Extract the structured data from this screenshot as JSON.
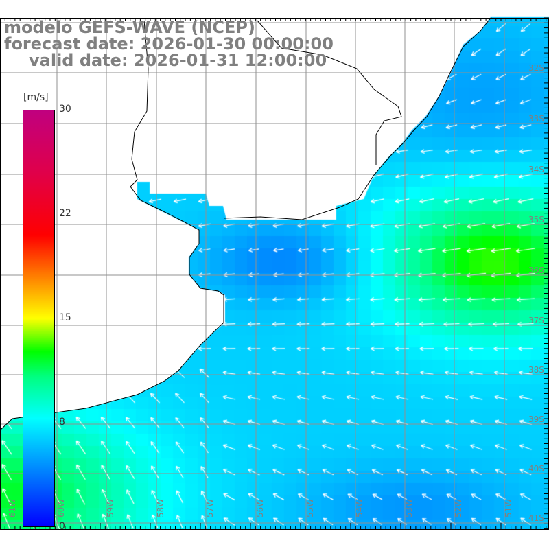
{
  "title": {
    "line1": "modelo GEFS-WAVE (NCEP)",
    "line2": "forecast date: 2026-01-30 00:00:00",
    "line3": "valid date: 2026-01-31 12:00:00"
  },
  "colorbar": {
    "units": "[m/s]",
    "ticks": [
      "30",
      "22",
      "15",
      "8",
      "0"
    ]
  },
  "axes": {
    "lon_labels": [
      "61W",
      "60W",
      "59W",
      "58W",
      "57W",
      "56W",
      "55W",
      "54W",
      "53W",
      "52W",
      "51W"
    ],
    "lat_labels": [
      "32S",
      "33S",
      "34S",
      "35S",
      "36S",
      "37S",
      "38S",
      "39S",
      "40S",
      "41S"
    ]
  },
  "colors": {
    "land": "#ffffff",
    "arrow": "#ffffff",
    "grid": "#909090",
    "coast": "#000000",
    "label": "#808080"
  }
}
